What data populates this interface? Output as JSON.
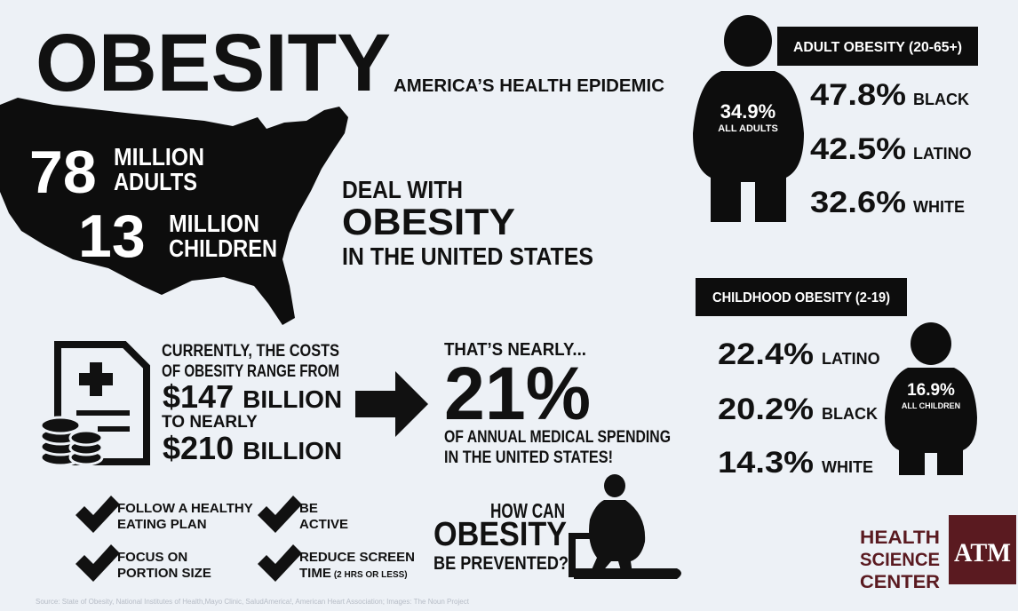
{
  "title": "OBESITY",
  "subtitle": "AMERICA’S HEALTH EPIDEMIC",
  "us_stats": {
    "adults": {
      "number": "78",
      "line1": "MILLION",
      "line2": "ADULTS"
    },
    "children": {
      "number": "13",
      "line1": "MILLION",
      "line2": "CHILDREN"
    }
  },
  "deal": {
    "line1": "DEAL WITH",
    "line2": "OBESITY",
    "line3": "IN THE UNITED STATES"
  },
  "costs": {
    "line1": "CURRENTLY, THE COSTS",
    "line2": "OF OBESITY RANGE FROM",
    "low_amount": "$147",
    "low_unit": "BILLION",
    "to": "TO NEARLY",
    "high_amount": "$210",
    "high_unit": "BILLION"
  },
  "share": {
    "intro": "THAT’S NEARLY...",
    "percent": "21%",
    "line1": "OF ANNUAL MEDICAL SPENDING",
    "line2": "IN THE UNITED STATES!"
  },
  "adult": {
    "heading": "ADULT OBESITY (20-65+)",
    "overall": "34.9%",
    "overall_label": "ALL ADULTS",
    "rows": [
      {
        "value": "47.8%",
        "group": "BLACK"
      },
      {
        "value": "42.5%",
        "group": "LATINO"
      },
      {
        "value": "32.6%",
        "group": "WHITE"
      }
    ]
  },
  "child": {
    "heading": "CHILDHOOD OBESITY (2-19)",
    "overall": "16.9%",
    "overall_label": "ALL CHILDREN",
    "rows": [
      {
        "value": "22.4%",
        "group": "LATINO"
      },
      {
        "value": "20.2%",
        "group": "BLACK"
      },
      {
        "value": "14.3%",
        "group": "WHITE"
      }
    ]
  },
  "tips": [
    {
      "line1": "FOLLOW A HEALTHY",
      "line2": "EATING PLAN"
    },
    {
      "line1": "BE",
      "line2": "ACTIVE"
    },
    {
      "line1": "FOCUS ON",
      "line2": "PORTION SIZE"
    },
    {
      "line1": "REDUCE SCREEN",
      "line2": "TIME",
      "note": "(2 HRS OR LESS)"
    }
  ],
  "prevent": {
    "line1": "HOW CAN",
    "line2": "OBESITY",
    "line3": "BE PREVENTED?"
  },
  "logo": {
    "line1": "HEALTH",
    "line2": "SCIENCE",
    "line3": "CENTER",
    "mark": "ATM"
  },
  "source": "Source: State of Obesity, National Institutes of Health,Mayo Clinic, SaludAmerica!, American Heart Association; Images: The Noun Project"
}
